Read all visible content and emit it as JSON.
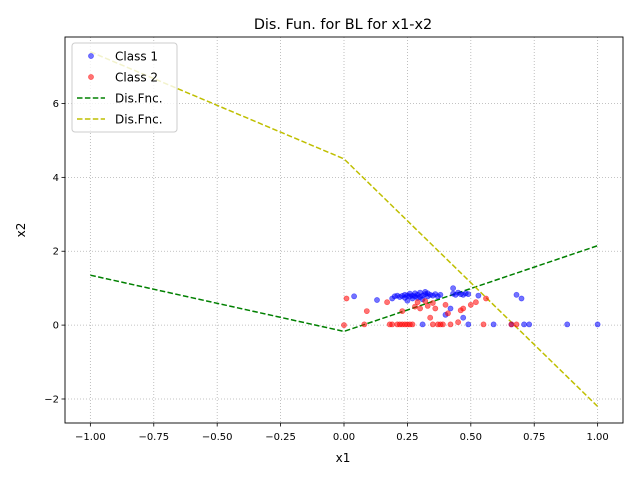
{
  "chart_data": {
    "type": "scatter",
    "title": "Dis. Fun. for BL for x1-x2",
    "xlabel": "x1",
    "ylabel": "x2",
    "xlim": [
      -1.1,
      1.1
    ],
    "ylim": [
      -2.65,
      7.8
    ],
    "grid": true,
    "legend_position": "top-left",
    "x_ticks": [
      {
        "value": -1.0,
        "label": "−1.00"
      },
      {
        "value": -0.75,
        "label": "−0.75"
      },
      {
        "value": -0.5,
        "label": "−0.50"
      },
      {
        "value": -0.25,
        "label": "−0.25"
      },
      {
        "value": 0.0,
        "label": "0.00"
      },
      {
        "value": 0.25,
        "label": "0.25"
      },
      {
        "value": 0.5,
        "label": "0.50"
      },
      {
        "value": 0.75,
        "label": "0.75"
      },
      {
        "value": 1.0,
        "label": "1.00"
      }
    ],
    "y_ticks": [
      {
        "value": -2,
        "label": "−2"
      },
      {
        "value": 0,
        "label": "0"
      },
      {
        "value": 2,
        "label": "2"
      },
      {
        "value": 4,
        "label": "4"
      },
      {
        "value": 6,
        "label": "6"
      }
    ],
    "series": [
      {
        "name": "Class 1",
        "kind": "points",
        "color": "#0000ff",
        "points": [
          [
            0.04,
            0.78
          ],
          [
            0.13,
            0.68
          ],
          [
            0.19,
            0.72
          ],
          [
            0.2,
            0.78
          ],
          [
            0.21,
            0.8
          ],
          [
            0.22,
            0.76
          ],
          [
            0.23,
            0.79
          ],
          [
            0.24,
            0.82
          ],
          [
            0.24,
            0.74
          ],
          [
            0.25,
            0.8
          ],
          [
            0.25,
            0.66
          ],
          [
            0.26,
            0.78
          ],
          [
            0.26,
            0.85
          ],
          [
            0.27,
            0.72
          ],
          [
            0.27,
            0.8
          ],
          [
            0.28,
            0.78
          ],
          [
            0.28,
            0.86
          ],
          [
            0.29,
            0.74
          ],
          [
            0.29,
            0.82
          ],
          [
            0.3,
            0.76
          ],
          [
            0.3,
            0.88
          ],
          [
            0.31,
            0.8
          ],
          [
            0.31,
            0.7
          ],
          [
            0.32,
            0.84
          ],
          [
            0.32,
            0.9
          ],
          [
            0.33,
            0.78
          ],
          [
            0.33,
            0.86
          ],
          [
            0.34,
            0.82
          ],
          [
            0.35,
            0.8
          ],
          [
            0.36,
            0.84
          ],
          [
            0.37,
            0.78
          ],
          [
            0.38,
            0.82
          ],
          [
            0.4,
            0.28
          ],
          [
            0.42,
            0.45
          ],
          [
            0.43,
            0.85
          ],
          [
            0.43,
            1.0
          ],
          [
            0.44,
            0.82
          ],
          [
            0.45,
            0.88
          ],
          [
            0.46,
            0.84
          ],
          [
            0.47,
            0.82
          ],
          [
            0.47,
            0.2
          ],
          [
            0.48,
            0.86
          ],
          [
            0.49,
            0.84
          ],
          [
            0.49,
            0.02
          ],
          [
            0.53,
            0.8
          ],
          [
            0.59,
            0.02
          ],
          [
            0.66,
            0.02
          ],
          [
            0.68,
            0.82
          ],
          [
            0.7,
            0.72
          ],
          [
            0.71,
            0.02
          ],
          [
            0.73,
            0.02
          ],
          [
            0.88,
            0.02
          ],
          [
            1.0,
            0.02
          ],
          [
            0.31,
            0.02
          ]
        ]
      },
      {
        "name": "Class 2",
        "kind": "points",
        "color": "#ff0000",
        "points": [
          [
            0.0,
            0.0
          ],
          [
            0.01,
            0.72
          ],
          [
            0.08,
            0.02
          ],
          [
            0.09,
            0.38
          ],
          [
            0.17,
            0.62
          ],
          [
            0.18,
            0.02
          ],
          [
            0.19,
            0.02
          ],
          [
            0.21,
            0.02
          ],
          [
            0.22,
            0.02
          ],
          [
            0.23,
            0.38
          ],
          [
            0.23,
            0.02
          ],
          [
            0.24,
            0.02
          ],
          [
            0.25,
            0.02
          ],
          [
            0.26,
            0.02
          ],
          [
            0.27,
            0.02
          ],
          [
            0.28,
            0.5
          ],
          [
            0.3,
            0.45
          ],
          [
            0.32,
            0.65
          ],
          [
            0.33,
            0.52
          ],
          [
            0.34,
            0.2
          ],
          [
            0.35,
            0.6
          ],
          [
            0.35,
            0.02
          ],
          [
            0.37,
            0.02
          ],
          [
            0.38,
            0.02
          ],
          [
            0.39,
            0.02
          ],
          [
            0.4,
            0.55
          ],
          [
            0.41,
            0.32
          ],
          [
            0.42,
            0.02
          ],
          [
            0.45,
            0.08
          ],
          [
            0.46,
            0.4
          ],
          [
            0.47,
            0.45
          ],
          [
            0.5,
            0.55
          ],
          [
            0.52,
            0.62
          ],
          [
            0.55,
            0.02
          ],
          [
            0.56,
            0.72
          ],
          [
            0.66,
            0.02
          ],
          [
            0.68,
            0.02
          ],
          [
            0.29,
            0.62
          ],
          [
            0.36,
            0.45
          ]
        ]
      },
      {
        "name": "Dis.Fnc.",
        "kind": "line",
        "color": "#008000",
        "points": [
          [
            -1.0,
            1.35
          ],
          [
            0.0,
            -0.17
          ],
          [
            1.0,
            2.15
          ]
        ]
      },
      {
        "name": "Dis.Fnc.",
        "kind": "line",
        "color": "#bfbf00",
        "points": [
          [
            -1.0,
            7.4
          ],
          [
            0.0,
            4.5
          ],
          [
            1.0,
            -2.2
          ]
        ]
      }
    ]
  }
}
